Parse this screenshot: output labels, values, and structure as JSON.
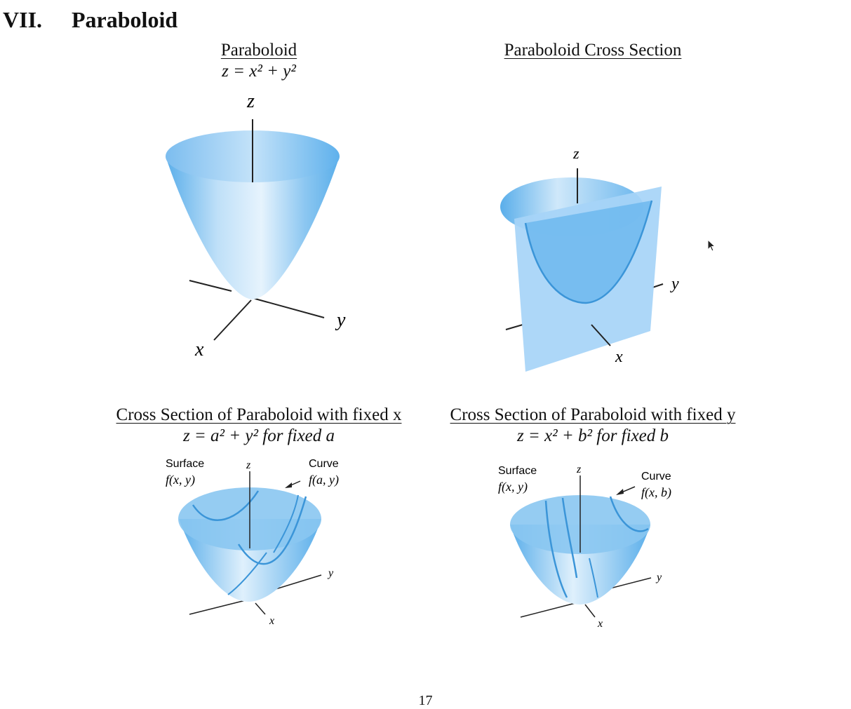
{
  "section": {
    "number": "VII.",
    "title": "Paraboloid"
  },
  "figures": [
    {
      "title": "Paraboloid",
      "formula": "z = x² + y²",
      "axes": {
        "z": "z",
        "x": "x",
        "y": "y"
      }
    },
    {
      "title": "Paraboloid Cross Section",
      "formula": "",
      "axes": {
        "z": "z",
        "x": "x",
        "y": "y"
      }
    },
    {
      "title": "Cross Section of Paraboloid with fixed x",
      "formula": "z = a² + y² for fixed a",
      "axes": {
        "z": "z",
        "x": "x",
        "y": "y"
      },
      "labels": {
        "surface": "Surface",
        "surface_fn": "f(x, y)",
        "curve": "Curve",
        "curve_fn": "f(a, y)"
      }
    },
    {
      "title": "Cross Section of Paraboloid with fixed y",
      "formula": "z = x² + b² for fixed b",
      "axes": {
        "z": "z",
        "x": "x",
        "y": "y"
      },
      "labels": {
        "surface": "Surface",
        "surface_fn": "f(x, y)",
        "curve": "Curve",
        "curve_fn": "f(x, b)"
      }
    }
  ],
  "page_number": "17",
  "colors": {
    "surface_light": "#e6f3fd",
    "surface_mid": "#9fd0f5",
    "surface_dark": "#5aaeea",
    "plane": "#a6d4f7",
    "curve": "#3b95d8"
  }
}
